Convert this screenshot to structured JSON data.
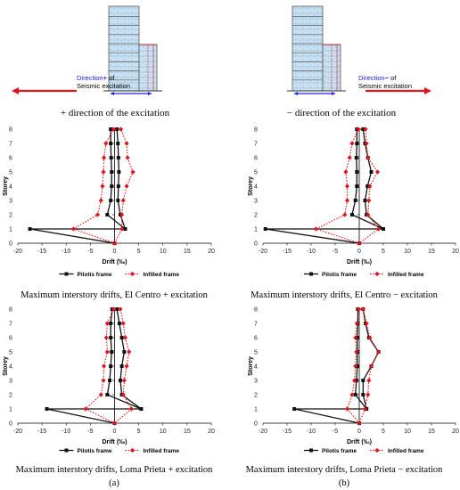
{
  "colors": {
    "pilotis": "#111111",
    "infilled": "#e0151b",
    "axis": "#000000",
    "frame_outline": "#5a5a5a",
    "frame_fill": "#bcd8ec",
    "arrow_red": "#e0151b",
    "arrow_blue": "#1a22d6",
    "dir_text_blue": "#1a22d6"
  },
  "diagram": {
    "left": {
      "direction_word": "Direction",
      "direction_sign": "+",
      "direction_suffix": " of",
      "seismic": "Seismic excitation",
      "caption": "+ direction of the excitation"
    },
    "right": {
      "direction_word": "Direction",
      "direction_sign": "−",
      "direction_suffix": " of",
      "seismic": "Seismic excitation",
      "caption": "− direction of the excitation"
    }
  },
  "figure_labels": {
    "a": "(a)",
    "b": "(b)"
  },
  "chart_data": [
    {
      "type": "line",
      "title": "Maximum interstory drifts, El Centro + excitation",
      "xlabel": "Drift (‰)",
      "ylabel": "Storey",
      "xlim": [
        -20,
        20
      ],
      "ylim": [
        0,
        8
      ],
      "xticks": [
        -20,
        -15,
        -10,
        -5,
        0,
        5,
        10,
        15,
        20
      ],
      "yticks": [
        0,
        1,
        2,
        3,
        4,
        5,
        6,
        7,
        8
      ],
      "grid": false,
      "legend": "bottom",
      "series": [
        {
          "name": "Pilotis frame",
          "style": "solid",
          "marker": "square",
          "points": [
            [
              0,
              0
            ],
            [
              -17.5,
              1
            ],
            [
              2.2,
              1
            ],
            [
              1.2,
              2
            ],
            [
              0.7,
              3
            ],
            [
              0.8,
              4
            ],
            [
              0.9,
              5
            ],
            [
              0.8,
              6
            ],
            [
              0.7,
              7
            ],
            [
              0.5,
              8
            ],
            [
              -0.8,
              8
            ],
            [
              -0.8,
              7
            ],
            [
              -0.7,
              6
            ],
            [
              -0.6,
              5
            ],
            [
              -0.6,
              4
            ],
            [
              -0.8,
              3
            ],
            [
              -1.5,
              2
            ],
            [
              2.2,
              1
            ]
          ]
        },
        {
          "name": "Infilled frame",
          "style": "dotted",
          "marker": "diamond",
          "points": [
            [
              0,
              0
            ],
            [
              -8.5,
              1
            ],
            [
              -3.5,
              2
            ],
            [
              -2.8,
              3
            ],
            [
              -2.5,
              4
            ],
            [
              -2.3,
              5
            ],
            [
              -2.2,
              6
            ],
            [
              -1.8,
              7
            ],
            [
              -0.2,
              8
            ],
            [
              1.3,
              8
            ],
            [
              2.5,
              7
            ],
            [
              2.7,
              6
            ],
            [
              3.8,
              5
            ],
            [
              2.5,
              4
            ],
            [
              1.8,
              3
            ],
            [
              1.5,
              2
            ],
            [
              1.5,
              1
            ],
            [
              0,
              0
            ]
          ]
        }
      ]
    },
    {
      "type": "line",
      "title": "Maximum interstory drifts, El Centro − excitation",
      "xlabel": "Drift (‰)",
      "ylabel": "Storey",
      "xlim": [
        -20,
        20
      ],
      "ylim": [
        0,
        8
      ],
      "xticks": [
        -20,
        -15,
        -10,
        -5,
        0,
        5,
        10,
        15,
        20
      ],
      "yticks": [
        0,
        1,
        2,
        3,
        4,
        5,
        6,
        7,
        8
      ],
      "grid": false,
      "legend": "bottom",
      "series": [
        {
          "name": "Pilotis frame",
          "style": "solid",
          "marker": "square",
          "points": [
            [
              0,
              0
            ],
            [
              -19.5,
              1
            ],
            [
              5,
              1
            ],
            [
              1.5,
              2
            ],
            [
              1.2,
              3
            ],
            [
              1.7,
              4
            ],
            [
              2.5,
              5
            ],
            [
              1.8,
              6
            ],
            [
              1.2,
              7
            ],
            [
              0.8,
              8
            ],
            [
              -0.5,
              8
            ],
            [
              -0.5,
              7
            ],
            [
              -0.6,
              6
            ],
            [
              -0.5,
              5
            ],
            [
              -0.5,
              4
            ],
            [
              -0.8,
              3
            ],
            [
              -1.5,
              2
            ],
            [
              5,
              1
            ]
          ]
        },
        {
          "name": "Infilled frame",
          "style": "dotted",
          "marker": "diamond",
          "points": [
            [
              0,
              0
            ],
            [
              -9,
              1
            ],
            [
              -3,
              2
            ],
            [
              -2.5,
              3
            ],
            [
              -2.5,
              4
            ],
            [
              -2.8,
              5
            ],
            [
              -2,
              6
            ],
            [
              -1.5,
              7
            ],
            [
              -0.2,
              8
            ],
            [
              1.3,
              8
            ],
            [
              1.5,
              7
            ],
            [
              1.8,
              6
            ],
            [
              3.8,
              5
            ],
            [
              2.2,
              4
            ],
            [
              2,
              3
            ],
            [
              1.8,
              2
            ],
            [
              4,
              1
            ],
            [
              0,
              0
            ]
          ]
        }
      ]
    },
    {
      "type": "line",
      "title": "Maximum interstory drifts, Loma Prieta + excitation",
      "xlabel": "Drift (‰)",
      "ylabel": "Storey",
      "xlim": [
        -20,
        20
      ],
      "ylim": [
        0,
        8
      ],
      "xticks": [
        -20,
        -15,
        -10,
        -5,
        0,
        5,
        10,
        15,
        20
      ],
      "yticks": [
        0,
        1,
        2,
        3,
        4,
        5,
        6,
        7,
        8
      ],
      "grid": false,
      "legend": "bottom",
      "series": [
        {
          "name": "Pilotis frame",
          "style": "solid",
          "marker": "square",
          "points": [
            [
              0,
              0
            ],
            [
              -14,
              1
            ],
            [
              5.5,
              1
            ],
            [
              1.5,
              2
            ],
            [
              1.2,
              3
            ],
            [
              1.5,
              4
            ],
            [
              2,
              5
            ],
            [
              1.5,
              6
            ],
            [
              1,
              7
            ],
            [
              0.5,
              8
            ],
            [
              -0.5,
              8
            ],
            [
              -0.8,
              7
            ],
            [
              -0.8,
              6
            ],
            [
              -0.6,
              5
            ],
            [
              -0.8,
              4
            ],
            [
              -1,
              3
            ],
            [
              -1.5,
              2
            ],
            [
              5.5,
              1
            ]
          ]
        },
        {
          "name": "Infilled frame",
          "style": "dotted",
          "marker": "diamond",
          "points": [
            [
              0,
              0
            ],
            [
              -6,
              1
            ],
            [
              -2.8,
              2
            ],
            [
              -2.3,
              3
            ],
            [
              -2.2,
              4
            ],
            [
              -1.5,
              5
            ],
            [
              -1.7,
              6
            ],
            [
              -1.5,
              7
            ],
            [
              -0.2,
              8
            ],
            [
              1.2,
              8
            ],
            [
              1.8,
              7
            ],
            [
              2.2,
              6
            ],
            [
              3,
              5
            ],
            [
              2.5,
              4
            ],
            [
              2,
              3
            ],
            [
              1.8,
              2
            ],
            [
              3.5,
              1
            ],
            [
              0,
              0
            ]
          ]
        }
      ]
    },
    {
      "type": "line",
      "title": "Maximum interstory drifts, Loma Prieta − excitation",
      "xlabel": "Drift (‰)",
      "ylabel": "Storey",
      "xlim": [
        -20,
        20
      ],
      "ylim": [
        0,
        8
      ],
      "xticks": [
        -20,
        -15,
        -10,
        -5,
        0,
        5,
        10,
        15,
        20
      ],
      "yticks": [
        0,
        1,
        2,
        3,
        4,
        5,
        6,
        7,
        8
      ],
      "grid": false,
      "legend": "bottom",
      "series": [
        {
          "name": "Pilotis frame",
          "style": "solid",
          "marker": "square",
          "points": [
            [
              0,
              0
            ],
            [
              -13.5,
              1
            ],
            [
              1.5,
              1
            ],
            [
              0.8,
              2
            ],
            [
              0.8,
              3
            ],
            [
              2.5,
              4
            ],
            [
              4,
              5
            ],
            [
              2,
              6
            ],
            [
              1.3,
              7
            ],
            [
              0.8,
              8
            ],
            [
              -0.3,
              8
            ],
            [
              -0.3,
              7
            ],
            [
              -0.4,
              6
            ],
            [
              -0.4,
              5
            ],
            [
              -0.4,
              4
            ],
            [
              -0.6,
              3
            ],
            [
              -0.8,
              2
            ],
            [
              1.5,
              1
            ]
          ]
        },
        {
          "name": "Infilled frame",
          "style": "dotted",
          "marker": "diamond",
          "points": [
            [
              0,
              0
            ],
            [
              -2.5,
              1
            ],
            [
              -1.5,
              2
            ],
            [
              -1,
              3
            ],
            [
              -0.8,
              4
            ],
            [
              -0.6,
              5
            ],
            [
              -0.8,
              6
            ],
            [
              -0.5,
              7
            ],
            [
              -0.1,
              8
            ],
            [
              0.8,
              8
            ],
            [
              1.5,
              7
            ],
            [
              2.2,
              6
            ],
            [
              4,
              5
            ],
            [
              2.5,
              4
            ],
            [
              2,
              3
            ],
            [
              1.8,
              2
            ],
            [
              1.2,
              1
            ],
            [
              0,
              0
            ]
          ]
        }
      ]
    }
  ]
}
